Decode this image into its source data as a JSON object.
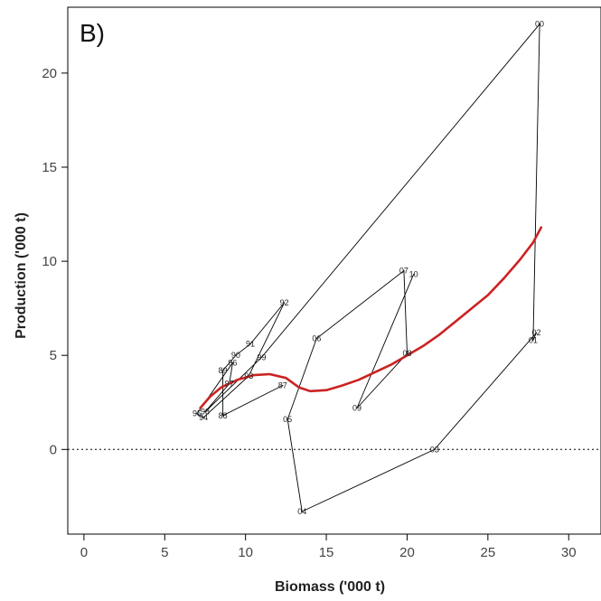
{
  "chart_data": {
    "type": "line",
    "panel_label": "B)",
    "xlabel": "Biomass ('000 t)",
    "ylabel": "Production ('000 t)",
    "xlim": [
      -1,
      32
    ],
    "ylim": [
      -4.5,
      23.5
    ],
    "xticks": [
      0,
      5,
      10,
      15,
      20,
      25,
      30
    ],
    "yticks": [
      0,
      5,
      10,
      15,
      20
    ],
    "grid": false,
    "reference_line": {
      "y": 0,
      "style": "dotted"
    },
    "series": [
      {
        "style": "thin-black-trajectory",
        "color": "#000000",
        "points": [
          {
            "label": "87",
            "x": 12.3,
            "y": 3.4
          },
          {
            "label": "88",
            "x": 8.6,
            "y": 1.8
          },
          {
            "label": "89",
            "x": 8.6,
            "y": 4.2
          },
          {
            "label": "90",
            "x": 9.4,
            "y": 5.0
          },
          {
            "label": "91",
            "x": 10.3,
            "y": 5.6
          },
          {
            "label": "92",
            "x": 12.4,
            "y": 7.8
          },
          {
            "label": "93",
            "x": 10.2,
            "y": 3.9
          },
          {
            "label": "94",
            "x": 7.4,
            "y": 1.7
          },
          {
            "label": "95",
            "x": 7.0,
            "y": 1.9
          },
          {
            "label": "96",
            "x": 9.2,
            "y": 4.6
          },
          {
            "label": "97",
            "x": 9.0,
            "y": 3.5
          },
          {
            "label": "98",
            "x": 7.5,
            "y": 2.0
          },
          {
            "label": "99",
            "x": 11.0,
            "y": 4.9
          },
          {
            "label": "00",
            "x": 28.2,
            "y": 22.6
          },
          {
            "label": "01",
            "x": 27.8,
            "y": 5.8
          },
          {
            "label": "02",
            "x": 28.0,
            "y": 6.2
          },
          {
            "label": "03",
            "x": 21.7,
            "y": 0.0
          },
          {
            "label": "04",
            "x": 13.5,
            "y": -3.3
          },
          {
            "label": "05",
            "x": 12.6,
            "y": 1.6
          },
          {
            "label": "06",
            "x": 14.4,
            "y": 5.9
          },
          {
            "label": "07",
            "x": 19.8,
            "y": 9.5
          },
          {
            "label": "08",
            "x": 20.0,
            "y": 5.1
          },
          {
            "label": "09",
            "x": 16.9,
            "y": 2.2
          },
          {
            "label": "10",
            "x": 20.4,
            "y": 9.3
          }
        ]
      },
      {
        "style": "thick-red-smoother",
        "color": "#cc2222",
        "points": [
          {
            "x": 7.2,
            "y": 2.2
          },
          {
            "x": 7.8,
            "y": 2.8
          },
          {
            "x": 8.5,
            "y": 3.3
          },
          {
            "x": 9.5,
            "y": 3.7
          },
          {
            "x": 10.5,
            "y": 3.95
          },
          {
            "x": 11.5,
            "y": 4.0
          },
          {
            "x": 12.5,
            "y": 3.8
          },
          {
            "x": 13.3,
            "y": 3.3
          },
          {
            "x": 14.0,
            "y": 3.1
          },
          {
            "x": 15.0,
            "y": 3.15
          },
          {
            "x": 16.0,
            "y": 3.4
          },
          {
            "x": 17.0,
            "y": 3.7
          },
          {
            "x": 18.0,
            "y": 4.1
          },
          {
            "x": 19.0,
            "y": 4.5
          },
          {
            "x": 20.0,
            "y": 5.0
          },
          {
            "x": 21.0,
            "y": 5.5
          },
          {
            "x": 22.0,
            "y": 6.1
          },
          {
            "x": 23.0,
            "y": 6.8
          },
          {
            "x": 24.0,
            "y": 7.5
          },
          {
            "x": 25.0,
            "y": 8.2
          },
          {
            "x": 26.0,
            "y": 9.1
          },
          {
            "x": 27.0,
            "y": 10.1
          },
          {
            "x": 27.8,
            "y": 11.0
          },
          {
            "x": 28.3,
            "y": 11.8
          }
        ]
      }
    ]
  }
}
